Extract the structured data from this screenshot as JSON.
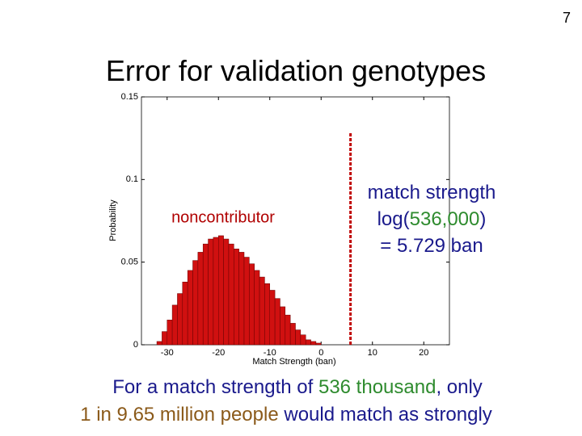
{
  "page_number": "7",
  "title": "Error for validation genotypes",
  "chart_data": {
    "type": "histogram",
    "xlabel": "Match Strength (ban)",
    "ylabel": "Probability",
    "label": "noncontributor",
    "bins": [
      -32,
      -31,
      -30,
      -29,
      -28,
      -27,
      -26,
      -25,
      -24,
      -23,
      -22,
      -21,
      -20,
      -19,
      -18,
      -17,
      -16,
      -15,
      -14,
      -13,
      -12,
      -11,
      -10,
      -9,
      -8,
      -7,
      -6,
      -5,
      -4,
      -3,
      -2,
      -1,
      0
    ],
    "values": [
      0.002,
      0.008,
      0.015,
      0.024,
      0.031,
      0.038,
      0.045,
      0.051,
      0.056,
      0.061,
      0.064,
      0.065,
      0.066,
      0.064,
      0.061,
      0.058,
      0.056,
      0.053,
      0.049,
      0.045,
      0.041,
      0.037,
      0.033,
      0.028,
      0.023,
      0.018,
      0.013,
      0.009,
      0.006,
      0.003,
      0.002,
      0.001
    ],
    "color": "#d01010",
    "threshold": 5.729,
    "threshold_color": "#c00000",
    "xlim": [
      -35,
      25
    ],
    "xticks": [
      -30,
      -20,
      -10,
      0,
      10,
      20
    ],
    "ylim": [
      0,
      0.15
    ],
    "yticks": [
      0,
      0.05,
      0.1,
      0.15
    ]
  },
  "callout": {
    "line1": "match strength",
    "line2": [
      "log(",
      "536,000",
      ")"
    ],
    "line3": "= 5.729 ban"
  },
  "caption": {
    "line1": [
      "For a match strength of ",
      "536 thousand",
      ", only"
    ],
    "line2": [
      "1 in 9.65 million people",
      " would match as strongly"
    ]
  }
}
